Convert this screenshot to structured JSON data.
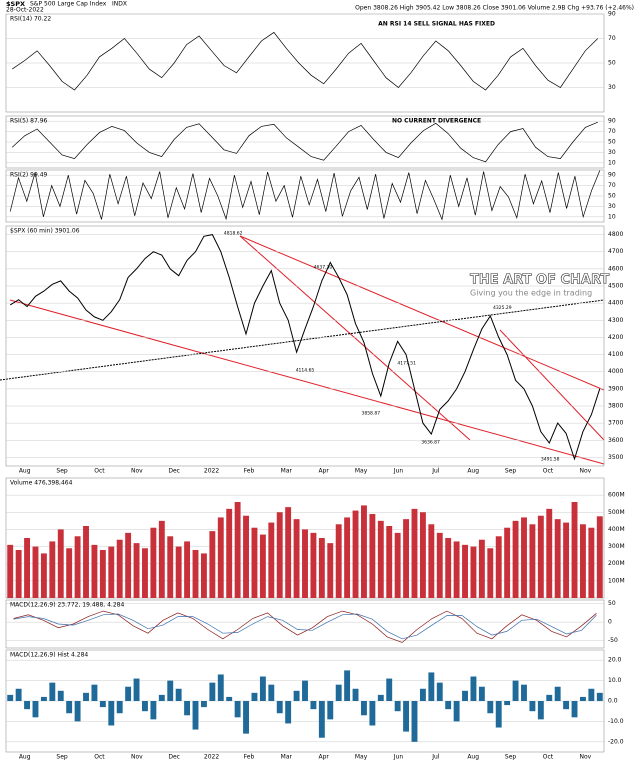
{
  "header": {
    "symbol": "$SPX",
    "name": "S&P 500 Large Cap Index",
    "exchange": "INDX",
    "date": "28-Oct-2022",
    "quote": "Open 3808.26 High 3905.42 Low 3808.26 Close 3901.06 Volume 2.9B Chg +93.76 (+2.46%)"
  },
  "logo": {
    "title": "THE ART OF CHART",
    "tagline": "Giving you the edge in trading"
  },
  "chart_data": [
    {
      "type": "line",
      "title": "RSI(14) 70.22",
      "annotations": [
        "AN RSI 14 SELL SIGNAL HAS FIXED"
      ],
      "ylim": [
        10,
        90
      ],
      "yticks": [
        30,
        50,
        70,
        90
      ],
      "series": [
        {
          "name": "RSI(14)",
          "color": "#000000",
          "values": [
            45,
            52,
            60,
            48,
            35,
            28,
            40,
            55,
            62,
            70,
            58,
            45,
            38,
            50,
            65,
            72,
            60,
            48,
            42,
            55,
            68,
            75,
            62,
            50,
            40,
            33,
            45,
            58,
            66,
            52,
            38,
            30,
            42,
            56,
            68,
            60,
            48,
            35,
            28,
            40,
            55,
            62,
            48,
            36,
            30,
            45,
            60,
            70
          ]
        }
      ]
    },
    {
      "type": "line",
      "title": "RSI(5) 87.96",
      "annotations": [
        "NO CURRENT DIVERGENCE"
      ],
      "ylim": [
        0,
        100
      ],
      "yticks": [
        10,
        30,
        50,
        70,
        90
      ],
      "series": [
        {
          "name": "RSI(5)",
          "color": "#000000",
          "values": [
            40,
            62,
            75,
            50,
            25,
            18,
            45,
            68,
            80,
            72,
            48,
            30,
            22,
            55,
            78,
            85,
            60,
            35,
            28,
            62,
            80,
            84,
            58,
            40,
            22,
            15,
            42,
            70,
            82,
            55,
            30,
            20,
            48,
            72,
            86,
            66,
            38,
            20,
            12,
            45,
            70,
            76,
            40,
            22,
            18,
            50,
            78,
            88
          ]
        }
      ]
    },
    {
      "type": "line",
      "title": "RSI(2) 99.49",
      "ylim": [
        0,
        100
      ],
      "yticks": [
        10,
        30,
        50,
        70,
        90
      ],
      "series": [
        {
          "name": "RSI(2)",
          "color": "#000000",
          "values": [
            20,
            85,
            40,
            95,
            10,
            70,
            30,
            90,
            15,
            80,
            55,
            5,
            92,
            35,
            88,
            12,
            75,
            45,
            97,
            8,
            66,
            25,
            93,
            18,
            84,
            50,
            6,
            90,
            28,
            78,
            14,
            96,
            40,
            70,
            9,
            88,
            33,
            82,
            20,
            94,
            11,
            60,
            86,
            24,
            92,
            7,
            74,
            38,
            95,
            16,
            80,
            44,
            5,
            90,
            30,
            85,
            13,
            97,
            22,
            68,
            48,
            8,
            92,
            35,
            79,
            18,
            95,
            26,
            88,
            10,
            60,
            99
          ]
        }
      ]
    },
    {
      "type": "line",
      "title": "$SPX (60 min) 3901.06",
      "ylim": [
        3450,
        4850
      ],
      "yticks": [
        3500,
        3600,
        3700,
        3800,
        3900,
        4000,
        4100,
        4200,
        4300,
        4400,
        4500,
        4600,
        4700,
        4800
      ],
      "time_axis": [
        "Aug",
        "Sep",
        "Oct",
        "Nov",
        "Dec",
        "2022",
        "Feb",
        "Mar",
        "Apr",
        "May",
        "Jun",
        "Jul",
        "Aug",
        "Sep",
        "Oct",
        "Nov"
      ],
      "annotations": [
        "4818.62",
        "4637.30",
        "4325.29",
        "4114.65",
        "3636.87",
        "3491.58",
        "4177.51",
        "3858.87"
      ],
      "series": [
        {
          "name": "$SPX",
          "color": "#000000",
          "values": [
            4390,
            4420,
            4380,
            4440,
            4470,
            4510,
            4530,
            4470,
            4430,
            4360,
            4320,
            4300,
            4350,
            4420,
            4550,
            4600,
            4660,
            4700,
            4680,
            4600,
            4560,
            4650,
            4700,
            4790,
            4800,
            4700,
            4550,
            4380,
            4220,
            4400,
            4500,
            4590,
            4400,
            4300,
            4114,
            4250,
            4380,
            4530,
            4637,
            4550,
            4450,
            4280,
            4170,
            3990,
            3858,
            4050,
            4177,
            4100,
            3900,
            3700,
            3636,
            3780,
            3830,
            3900,
            4000,
            4130,
            4250,
            4325,
            4200,
            4100,
            3950,
            3900,
            3800,
            3650,
            3584,
            3700,
            3640,
            3491,
            3650,
            3750,
            3901
          ]
        }
      ]
    },
    {
      "type": "bar",
      "title": "Volume 476,398,464",
      "ylim": [
        0,
        700000000
      ],
      "yticks": [
        {
          "value": 100000000,
          "label": "100M"
        },
        {
          "value": 200000000,
          "label": "200M"
        },
        {
          "value": 300000000,
          "label": "300M"
        },
        {
          "value": 400000000,
          "label": "400M"
        },
        {
          "value": 500000000,
          "label": "500M"
        },
        {
          "value": 600000000,
          "label": "600M"
        }
      ],
      "series": [
        {
          "name": "Volume",
          "color": "#c8303a",
          "values": [
            310000000,
            280000000,
            350000000,
            300000000,
            260000000,
            330000000,
            400000000,
            290000000,
            360000000,
            420000000,
            310000000,
            280000000,
            300000000,
            340000000,
            380000000,
            320000000,
            290000000,
            410000000,
            450000000,
            360000000,
            300000000,
            330000000,
            280000000,
            260000000,
            390000000,
            470000000,
            520000000,
            560000000,
            480000000,
            410000000,
            370000000,
            440000000,
            500000000,
            530000000,
            460000000,
            400000000,
            380000000,
            350000000,
            320000000,
            430000000,
            470000000,
            510000000,
            540000000,
            490000000,
            450000000,
            420000000,
            380000000,
            460000000,
            520000000,
            500000000,
            430000000,
            380000000,
            350000000,
            330000000,
            310000000,
            300000000,
            340000000,
            290000000,
            360000000,
            410000000,
            450000000,
            470000000,
            430000000,
            480000000,
            520000000,
            460000000,
            440000000,
            560000000,
            430000000,
            410000000,
            476398464
          ]
        }
      ]
    },
    {
      "type": "line",
      "title": "MACD(12,26,9) 23.772, 19.488, 4.284",
      "ylim": [
        -70,
        60
      ],
      "yticks": [
        -50,
        0,
        50
      ],
      "series": [
        {
          "name": "MACD",
          "color": "#8b1a1a",
          "values": [
            10,
            20,
            5,
            -15,
            -5,
            15,
            30,
            20,
            -10,
            -30,
            5,
            25,
            10,
            -20,
            -45,
            -20,
            10,
            25,
            -10,
            -35,
            -15,
            15,
            30,
            20,
            -5,
            -40,
            -55,
            -20,
            10,
            30,
            10,
            -30,
            -45,
            -10,
            20,
            5,
            -25,
            -40,
            -10,
            24
          ]
        },
        {
          "name": "Signal",
          "color": "#3a6fb0",
          "values": [
            8,
            15,
            10,
            -5,
            -8,
            5,
            20,
            22,
            5,
            -18,
            -8,
            15,
            15,
            -5,
            -30,
            -28,
            -5,
            15,
            5,
            -20,
            -22,
            0,
            20,
            22,
            8,
            -25,
            -45,
            -35,
            -8,
            18,
            18,
            -12,
            -35,
            -25,
            5,
            8,
            -12,
            -32,
            -22,
            19
          ]
        }
      ]
    },
    {
      "type": "bar",
      "title": "MACD(12,26,9) Hist 4.284",
      "ylim": [
        -25,
        25
      ],
      "yticks": [
        {
          "value": -20,
          "label": "-20.0"
        },
        {
          "value": -10,
          "label": "-10.0"
        },
        {
          "value": 0,
          "label": "0.0"
        },
        {
          "value": 10,
          "label": "10.0"
        },
        {
          "value": 20,
          "label": "20.0"
        }
      ],
      "time_axis": [
        "Aug",
        "Sep",
        "Oct",
        "Nov",
        "Dec",
        "2022",
        "Feb",
        "Mar",
        "Apr",
        "May",
        "Jun",
        "Jul",
        "Aug",
        "Sep",
        "Oct",
        "Nov"
      ],
      "series": [
        {
          "name": "Hist",
          "color": "#1f6a99",
          "values": [
            3,
            6,
            -4,
            -8,
            2,
            9,
            5,
            -6,
            -10,
            4,
            8,
            -3,
            -12,
            -6,
            7,
            11,
            -5,
            -9,
            3,
            10,
            6,
            -7,
            -14,
            -3,
            9,
            13,
            2,
            -8,
            -16,
            4,
            12,
            8,
            -6,
            -11,
            5,
            10,
            -4,
            -18,
            -9,
            8,
            15,
            6,
            -7,
            -12,
            3,
            11,
            -5,
            -15,
            -20,
            6,
            14,
            9,
            -4,
            -10,
            5,
            12,
            7,
            -6,
            -13,
            -2,
            10,
            8,
            -5,
            -9,
            3,
            7,
            -4,
            -8,
            2,
            6,
            4
          ]
        }
      ]
    }
  ]
}
